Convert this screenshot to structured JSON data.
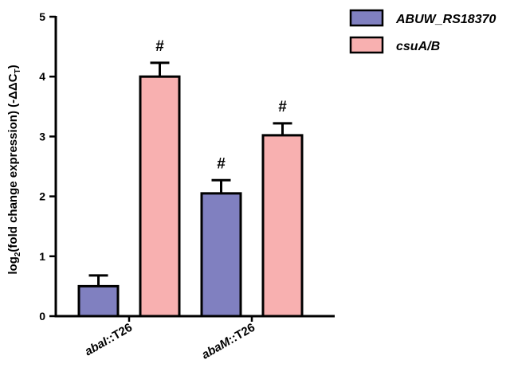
{
  "chart_data": {
    "type": "bar",
    "categories": [
      {
        "italic": "abaI",
        "rest": "::T26"
      },
      {
        "italic": "abaM",
        "rest": "::T26"
      }
    ],
    "series": [
      {
        "name": "ABUW_RS18370",
        "color": "#8080c0",
        "values": [
          0.5,
          2.05
        ],
        "errors": [
          0.18,
          0.22
        ],
        "significance": [
          "",
          "#"
        ]
      },
      {
        "name": "csuA/B",
        "color": "#f8b0b0",
        "values": [
          4.0,
          3.02
        ],
        "errors": [
          0.23,
          0.2
        ],
        "significance": [
          "#",
          "#"
        ]
      }
    ],
    "ylabel": {
      "prefix": "log",
      "sub": "2",
      "mid": "(fold change expression) (-ΔΔC",
      "sub2": "T",
      "suffix": ")"
    },
    "ylim": [
      0,
      5
    ],
    "yticks": [
      0,
      1,
      2,
      3,
      4,
      5
    ],
    "legend_position": "top-right",
    "grid": false
  }
}
